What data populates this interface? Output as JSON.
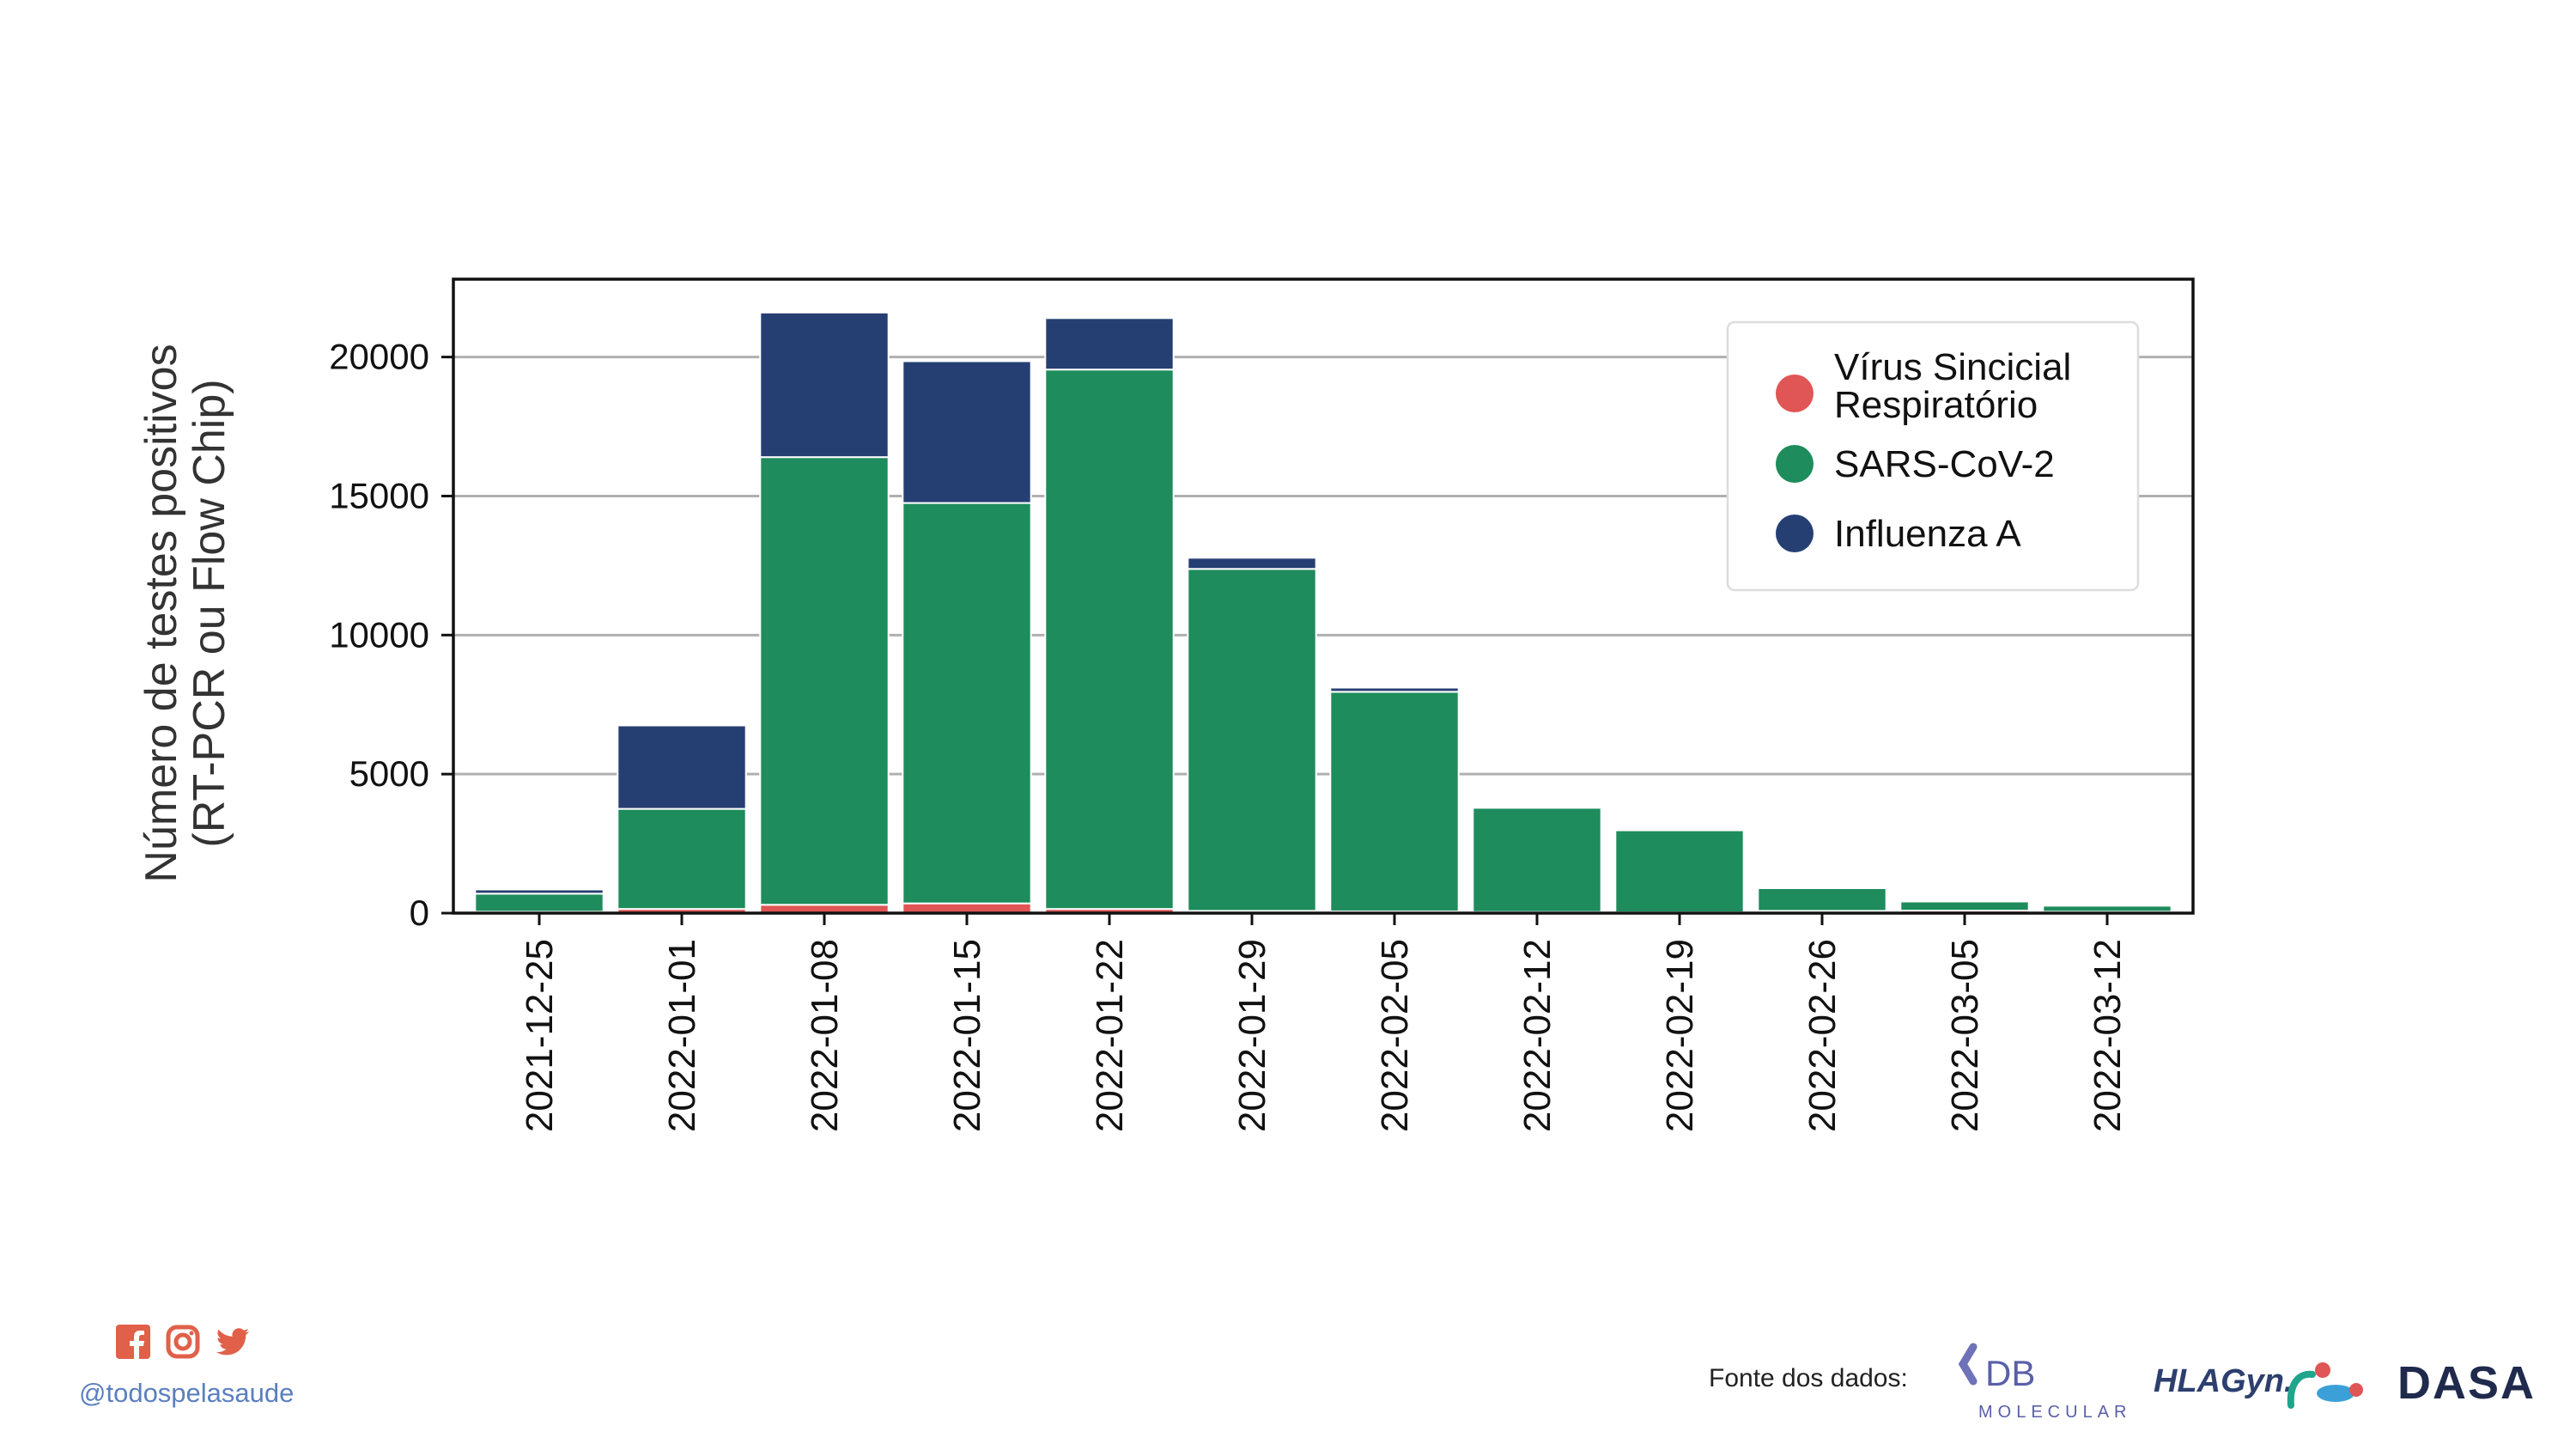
{
  "chart_data": {
    "type": "bar",
    "stacked": true,
    "ylabel_lines": [
      "Número de testes positivos",
      "(RT-PCR ou Flow Chip)"
    ],
    "categories": [
      "2021-12-25",
      "2022-01-01",
      "2022-01-08",
      "2022-01-15",
      "2022-01-22",
      "2022-01-29",
      "2022-02-05",
      "2022-02-12",
      "2022-02-19",
      "2022-02-26",
      "2022-03-05",
      "2022-03-12"
    ],
    "ylim": [
      0,
      22800
    ],
    "yticks": [
      0,
      5000,
      10000,
      15000,
      20000
    ],
    "ytick_labels": [
      "0",
      "5000",
      "10000",
      "15000",
      "20000"
    ],
    "grid": true,
    "legend_position": "top-right",
    "series": [
      {
        "name": "Vírus Sincicial Respiratório",
        "color": "#e05555",
        "values": [
          50,
          150,
          300,
          350,
          150,
          80,
          60,
          40,
          30,
          80,
          90,
          50
        ]
      },
      {
        "name": "SARS-CoV-2",
        "color": "#1e8c5c",
        "values": [
          650,
          3600,
          16100,
          14400,
          19400,
          12300,
          7900,
          3750,
          2950,
          820,
          330,
          220
        ]
      },
      {
        "name": "Influenza A",
        "color": "#263f73",
        "values": [
          150,
          3000,
          5200,
          5100,
          1850,
          400,
          150,
          60,
          20,
          10,
          10,
          10
        ]
      }
    ],
    "legend_lines": [
      [
        "Vírus Sincicial",
        "Respiratório"
      ],
      [
        "SARS-CoV-2"
      ],
      [
        "Influenza A"
      ]
    ]
  },
  "footer": {
    "handle": "@todospelasaude",
    "source_label": "Fonte dos dados:",
    "social_icons": [
      "facebook-icon",
      "instagram-icon",
      "twitter-icon"
    ],
    "social_color": "#e0604a",
    "logos": {
      "db_molecular": {
        "main": "DB",
        "sub": "MOLECULAR"
      },
      "hlagyn": "HLAGyn.",
      "dasa": "DASA"
    }
  }
}
